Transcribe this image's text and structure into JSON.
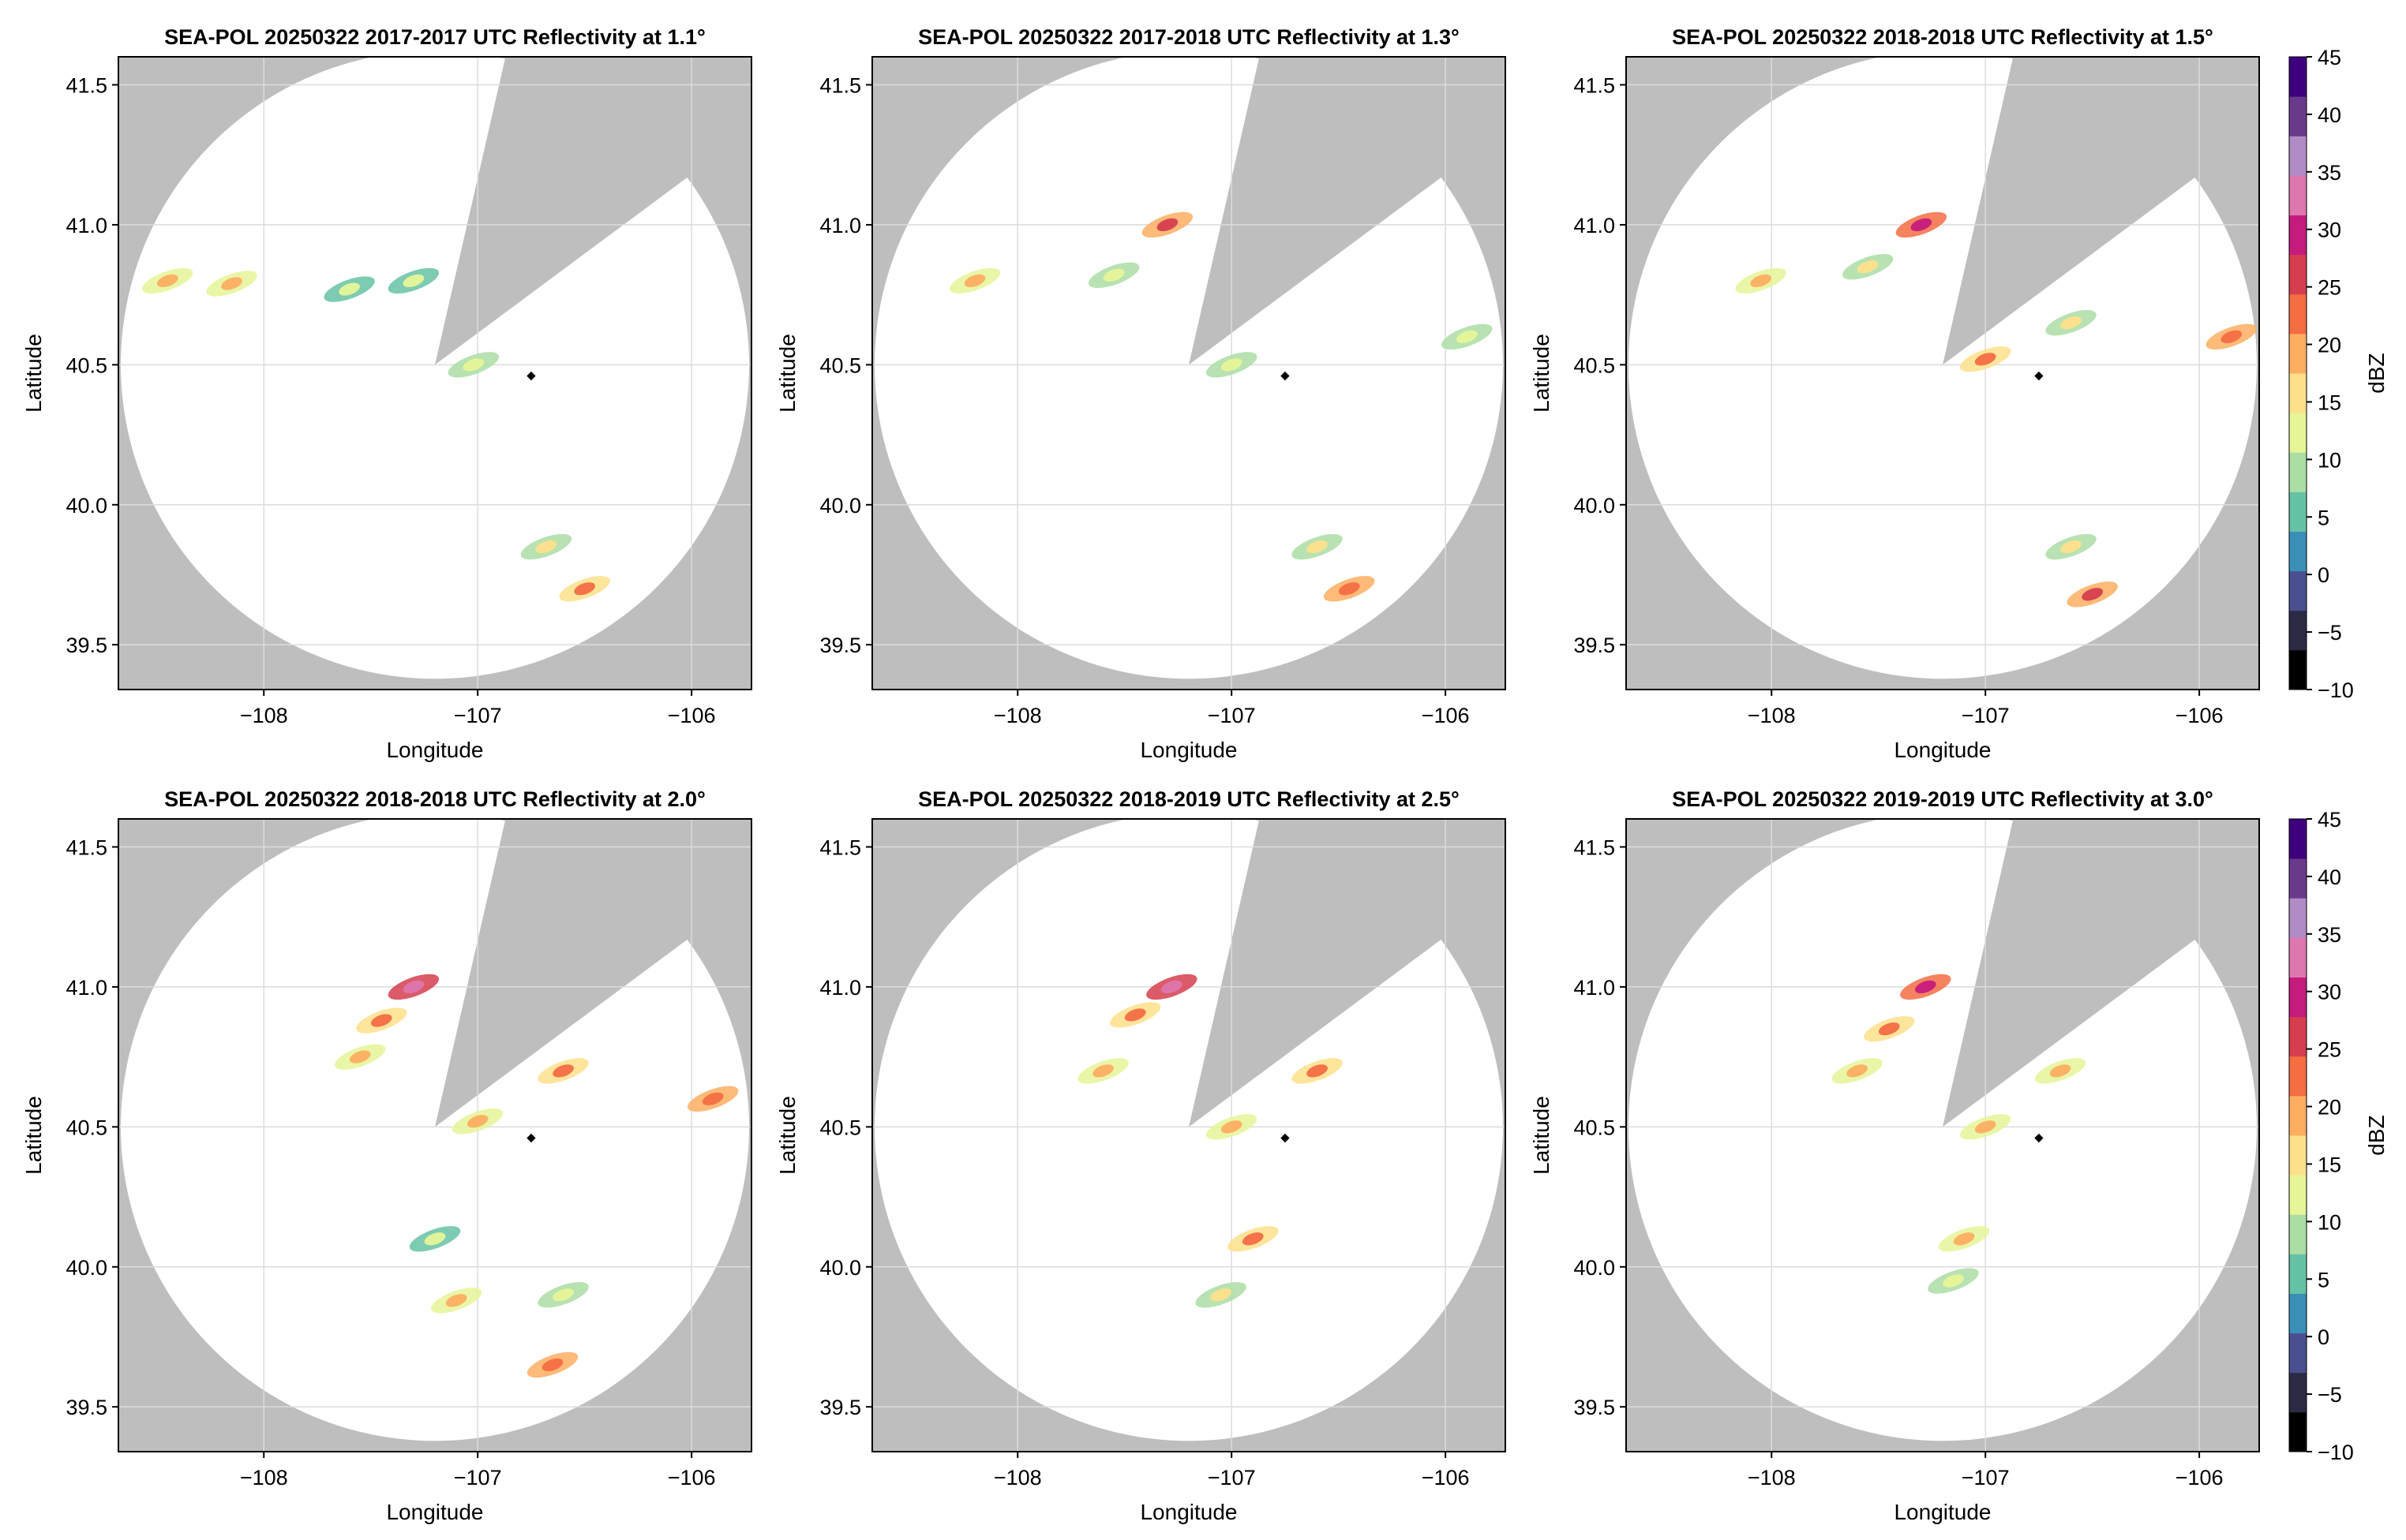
{
  "chart_data": [
    {
      "type": "heatmap",
      "title": "SEA-POL 20250322 2017-2017 UTC Reflectivity at 1.1°",
      "xlabel": "Longitude",
      "ylabel": "Latitude",
      "xlim": [
        -108.68,
        -105.72
      ],
      "ylim": [
        39.34,
        41.6
      ],
      "xticks": [
        -108,
        -107,
        -106
      ],
      "yticks": [
        39.5,
        40.0,
        40.5,
        41.0,
        41.5
      ],
      "xtick_labels": [
        "−108",
        "−107",
        "−106"
      ],
      "ytick_labels": [
        "39.5",
        "40.0",
        "40.5",
        "41.0",
        "41.5"
      ],
      "grid": true,
      "radar_site": [
        -107.2,
        40.5
      ],
      "marker": [
        -106.75,
        40.46
      ],
      "blocked_sector_deg": [
        30,
        60
      ],
      "cells": [
        {
          "lon": -108.45,
          "lat": 40.8,
          "dbz": 18
        },
        {
          "lon": -108.15,
          "lat": 40.79,
          "dbz": 20
        },
        {
          "lon": -107.6,
          "lat": 40.77,
          "dbz": 12
        },
        {
          "lon": -107.3,
          "lat": 40.8,
          "dbz": 12
        },
        {
          "lon": -107.02,
          "lat": 40.5,
          "dbz": 14
        },
        {
          "lon": -106.5,
          "lat": 39.7,
          "dbz": 22
        },
        {
          "lon": -106.68,
          "lat": 39.85,
          "dbz": 16
        }
      ]
    },
    {
      "type": "heatmap",
      "title": "SEA-POL 20250322 2017-2018 UTC Reflectivity at 1.3°",
      "xlabel": "Longitude",
      "ylabel": "Latitude",
      "xlim": [
        -108.68,
        -105.72
      ],
      "ylim": [
        39.34,
        41.6
      ],
      "xticks": [
        -108,
        -107,
        -106
      ],
      "yticks": [
        39.5,
        40.0,
        40.5,
        41.0,
        41.5
      ],
      "xtick_labels": [
        "−108",
        "−107",
        "−106"
      ],
      "ytick_labels": [
        "39.5",
        "40.0",
        "40.5",
        "41.0",
        "41.5"
      ],
      "grid": true,
      "radar_site": [
        -107.2,
        40.5
      ],
      "marker": [
        -106.75,
        40.46
      ],
      "blocked_sector_deg": [
        30,
        60
      ],
      "cells": [
        {
          "lon": -108.2,
          "lat": 40.8,
          "dbz": 18
        },
        {
          "lon": -107.55,
          "lat": 40.82,
          "dbz": 14
        },
        {
          "lon": -107.3,
          "lat": 41.0,
          "dbz": 26
        },
        {
          "lon": -107.0,
          "lat": 40.5,
          "dbz": 14
        },
        {
          "lon": -106.6,
          "lat": 39.85,
          "dbz": 16
        },
        {
          "lon": -106.45,
          "lat": 39.7,
          "dbz": 24
        },
        {
          "lon": -105.9,
          "lat": 40.6,
          "dbz": 14
        }
      ]
    },
    {
      "type": "heatmap",
      "title": "SEA-POL 20250322 2018-2018 UTC Reflectivity at 1.5°",
      "xlabel": "Longitude",
      "ylabel": "Latitude",
      "xlim": [
        -108.68,
        -105.72
      ],
      "ylim": [
        39.34,
        41.6
      ],
      "xticks": [
        -108,
        -107,
        -106
      ],
      "yticks": [
        39.5,
        40.0,
        40.5,
        41.0,
        41.5
      ],
      "xtick_labels": [
        "−108",
        "−107",
        "−106"
      ],
      "ytick_labels": [
        "39.5",
        "40.0",
        "40.5",
        "41.0",
        "41.5"
      ],
      "grid": true,
      "radar_site": [
        -107.2,
        40.5
      ],
      "marker": [
        -106.75,
        40.46
      ],
      "blocked_sector_deg": [
        30,
        60
      ],
      "cells": [
        {
          "lon": -108.05,
          "lat": 40.8,
          "dbz": 18
        },
        {
          "lon": -107.55,
          "lat": 40.85,
          "dbz": 16
        },
        {
          "lon": -107.3,
          "lat": 41.0,
          "dbz": 30
        },
        {
          "lon": -107.0,
          "lat": 40.52,
          "dbz": 22
        },
        {
          "lon": -106.6,
          "lat": 40.65,
          "dbz": 16
        },
        {
          "lon": -105.85,
          "lat": 40.6,
          "dbz": 24
        },
        {
          "lon": -106.6,
          "lat": 39.85,
          "dbz": 16
        },
        {
          "lon": -106.5,
          "lat": 39.68,
          "dbz": 26
        }
      ]
    },
    {
      "type": "heatmap",
      "title": "SEA-POL 20250322 2018-2018 UTC Reflectivity at 2.0°",
      "xlabel": "Longitude",
      "ylabel": "Latitude",
      "xlim": [
        -108.68,
        -105.72
      ],
      "ylim": [
        39.34,
        41.6
      ],
      "xticks": [
        -108,
        -107,
        -106
      ],
      "yticks": [
        39.5,
        40.0,
        40.5,
        41.0,
        41.5
      ],
      "xtick_labels": [
        "−108",
        "−107",
        "−106"
      ],
      "ytick_labels": [
        "39.5",
        "40.0",
        "40.5",
        "41.0",
        "41.5"
      ],
      "grid": true,
      "radar_site": [
        -107.2,
        40.5
      ],
      "marker": [
        -106.75,
        40.46
      ],
      "blocked_sector_deg": [
        30,
        60
      ],
      "cells": [
        {
          "lon": -107.3,
          "lat": 41.0,
          "dbz": 32
        },
        {
          "lon": -107.45,
          "lat": 40.88,
          "dbz": 22
        },
        {
          "lon": -107.55,
          "lat": 40.75,
          "dbz": 20
        },
        {
          "lon": -106.6,
          "lat": 40.7,
          "dbz": 22
        },
        {
          "lon": -107.0,
          "lat": 40.52,
          "dbz": 20
        },
        {
          "lon": -105.9,
          "lat": 40.6,
          "dbz": 24
        },
        {
          "lon": -107.2,
          "lat": 40.1,
          "dbz": 12
        },
        {
          "lon": -107.1,
          "lat": 39.88,
          "dbz": 18
        },
        {
          "lon": -106.65,
          "lat": 39.65,
          "dbz": 24
        },
        {
          "lon": -106.6,
          "lat": 39.9,
          "dbz": 14
        }
      ]
    },
    {
      "type": "heatmap",
      "title": "SEA-POL 20250322 2018-2019 UTC Reflectivity at 2.5°",
      "xlabel": "Longitude",
      "ylabel": "Latitude",
      "xlim": [
        -108.68,
        -105.72
      ],
      "ylim": [
        39.34,
        41.6
      ],
      "xticks": [
        -108,
        -107,
        -106
      ],
      "yticks": [
        39.5,
        40.0,
        40.5,
        41.0,
        41.5
      ],
      "xtick_labels": [
        "−108",
        "−107",
        "−106"
      ],
      "ytick_labels": [
        "39.5",
        "40.0",
        "40.5",
        "41.0",
        "41.5"
      ],
      "grid": true,
      "radar_site": [
        -107.2,
        40.5
      ],
      "marker": [
        -106.75,
        40.46
      ],
      "blocked_sector_deg": [
        30,
        60
      ],
      "cells": [
        {
          "lon": -107.28,
          "lat": 41.0,
          "dbz": 32
        },
        {
          "lon": -107.45,
          "lat": 40.9,
          "dbz": 22
        },
        {
          "lon": -107.6,
          "lat": 40.7,
          "dbz": 20
        },
        {
          "lon": -106.6,
          "lat": 40.7,
          "dbz": 22
        },
        {
          "lon": -107.0,
          "lat": 40.5,
          "dbz": 18
        },
        {
          "lon": -106.9,
          "lat": 40.1,
          "dbz": 22
        },
        {
          "lon": -107.05,
          "lat": 39.9,
          "dbz": 16
        }
      ]
    },
    {
      "type": "heatmap",
      "title": "SEA-POL 20250322 2019-2019 UTC Reflectivity at 3.0°",
      "xlabel": "Longitude",
      "ylabel": "Latitude",
      "xlim": [
        -108.68,
        -105.72
      ],
      "ylim": [
        39.34,
        41.6
      ],
      "xticks": [
        -108,
        -107,
        -106
      ],
      "yticks": [
        39.5,
        40.0,
        40.5,
        41.0,
        41.5
      ],
      "xtick_labels": [
        "−108",
        "−107",
        "−106"
      ],
      "ytick_labels": [
        "39.5",
        "40.0",
        "40.5",
        "41.0",
        "41.5"
      ],
      "grid": true,
      "radar_site": [
        -107.2,
        40.5
      ],
      "marker": [
        -106.75,
        40.46
      ],
      "blocked_sector_deg": [
        30,
        60
      ],
      "cells": [
        {
          "lon": -107.28,
          "lat": 41.0,
          "dbz": 30
        },
        {
          "lon": -107.45,
          "lat": 40.85,
          "dbz": 22
        },
        {
          "lon": -107.6,
          "lat": 40.7,
          "dbz": 20
        },
        {
          "lon": -106.65,
          "lat": 40.7,
          "dbz": 20
        },
        {
          "lon": -107.0,
          "lat": 40.5,
          "dbz": 20
        },
        {
          "lon": -107.1,
          "lat": 40.1,
          "dbz": 20
        },
        {
          "lon": -107.15,
          "lat": 39.95,
          "dbz": 14
        }
      ]
    }
  ],
  "colorbar": {
    "label": "dBZ",
    "range": [
      -10,
      45
    ],
    "ticks": [
      -10,
      -5,
      0,
      5,
      10,
      15,
      20,
      25,
      30,
      35,
      40,
      45
    ],
    "tick_labels": [
      "−10",
      "−5",
      "0",
      "5",
      "10",
      "15",
      "20",
      "25",
      "30",
      "35",
      "40",
      "45"
    ],
    "colors": [
      "#000000",
      "#2b2a44",
      "#4a4f8f",
      "#3a8fb7",
      "#66c2a5",
      "#abdda4",
      "#e6f598",
      "#fee08b",
      "#fdae61",
      "#f46d43",
      "#d53e4f",
      "#c51b7d",
      "#de77ae",
      "#b18bc6",
      "#6a3a8a",
      "#3f007d"
    ]
  },
  "colors": {
    "outside_range": "#bebebe",
    "radar_disk": "#ffffff",
    "gridline": "#dcdcdc",
    "marker": "#000000"
  }
}
